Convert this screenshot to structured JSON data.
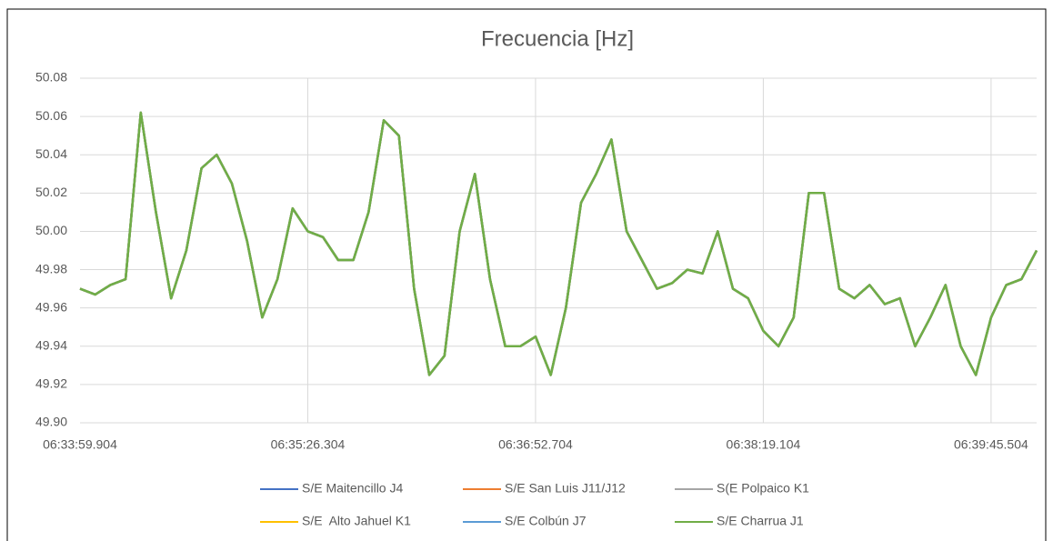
{
  "chart_data": {
    "type": "line",
    "title": "Frecuencia [Hz]",
    "categories": [
      "06:33:59.904",
      null,
      null,
      null,
      null,
      null,
      null,
      null,
      null,
      null,
      null,
      null,
      null,
      null,
      null,
      "06:35:26.304",
      null,
      null,
      null,
      null,
      null,
      null,
      null,
      null,
      null,
      null,
      null,
      null,
      null,
      null,
      "06:36:52.704",
      null,
      null,
      null,
      null,
      null,
      null,
      null,
      null,
      null,
      null,
      null,
      null,
      null,
      null,
      "06:38:19.104",
      null,
      null,
      null,
      null,
      null,
      null,
      null,
      null,
      null,
      null,
      null,
      null,
      null,
      null,
      "06:39:45.504",
      null,
      null,
      null
    ],
    "ylim": [
      49.9,
      50.08
    ],
    "yticks": [
      {
        "value": 49.9,
        "label": "49.90"
      },
      49.92,
      49.94,
      49.96,
      49.98,
      {
        "value": 50,
        "label": "50.00"
      },
      50.02,
      50.04,
      50.06,
      50.08
    ],
    "grid": true,
    "legend": "bottom",
    "series": [
      {
        "name": "S/E Maitencillo J4",
        "color": "#4472c4",
        "values": [
          49.97,
          49.967,
          49.972,
          49.975,
          50.062,
          50.01,
          49.965,
          49.99,
          50.033,
          50.04,
          50.025,
          49.995,
          49.955,
          49.975,
          50.012,
          50.0,
          49.997,
          49.985,
          49.985,
          50.01,
          50.058,
          50.05,
          49.97,
          49.925,
          49.935,
          50.0,
          50.03,
          49.975,
          49.94,
          49.94,
          49.945,
          49.925,
          49.96,
          50.015,
          50.03,
          50.048,
          50.0,
          49.985,
          49.97,
          49.973,
          49.98,
          49.978,
          50.0,
          49.97,
          49.965,
          49.948,
          49.94,
          49.955,
          50.02,
          50.02,
          49.97,
          49.965,
          49.972,
          49.962,
          49.965,
          49.94,
          49.955,
          49.972,
          49.94,
          49.925,
          49.955,
          49.972,
          49.975,
          49.99
        ]
      },
      {
        "name": "S/E San Luis J11/J12",
        "color": "#ed7d31",
        "values": [
          49.97,
          49.967,
          49.972,
          49.975,
          50.062,
          50.01,
          49.965,
          49.99,
          50.033,
          50.04,
          50.025,
          49.995,
          49.955,
          49.975,
          50.012,
          50.0,
          49.997,
          49.985,
          49.985,
          50.01,
          50.058,
          50.05,
          49.97,
          49.925,
          49.935,
          50.0,
          50.03,
          49.975,
          49.94,
          49.94,
          49.945,
          49.925,
          49.96,
          50.015,
          50.03,
          50.048,
          50.0,
          49.985,
          49.97,
          49.973,
          49.98,
          49.978,
          50.0,
          49.97,
          49.965,
          49.948,
          49.94,
          49.955,
          50.02,
          50.02,
          49.97,
          49.965,
          49.972,
          49.962,
          49.965,
          49.94,
          49.955,
          49.972,
          49.94,
          49.925,
          49.955,
          49.972,
          49.975,
          49.99
        ]
      },
      {
        "name": "S(E Polpaico K1",
        "color": "#a5a5a5",
        "values": [
          49.97,
          49.967,
          49.972,
          49.975,
          50.062,
          50.01,
          49.965,
          49.99,
          50.033,
          50.04,
          50.025,
          49.995,
          49.955,
          49.975,
          50.012,
          50.0,
          49.997,
          49.985,
          49.985,
          50.01,
          50.058,
          50.05,
          49.97,
          49.925,
          49.935,
          50.0,
          50.03,
          49.975,
          49.94,
          49.94,
          49.945,
          49.925,
          49.96,
          50.015,
          50.03,
          50.048,
          50.0,
          49.985,
          49.97,
          49.973,
          49.98,
          49.978,
          50.0,
          49.97,
          49.965,
          49.948,
          49.94,
          49.955,
          50.02,
          50.02,
          49.97,
          49.965,
          49.972,
          49.962,
          49.965,
          49.94,
          49.955,
          49.972,
          49.94,
          49.925,
          49.955,
          49.972,
          49.975,
          49.99
        ]
      },
      {
        "name": "S/E  Alto Jahuel K1",
        "color": "#ffc000",
        "values": [
          49.97,
          49.967,
          49.972,
          49.975,
          50.062,
          50.01,
          49.965,
          49.99,
          50.033,
          50.04,
          50.025,
          49.995,
          49.955,
          49.975,
          50.012,
          50.0,
          49.997,
          49.985,
          49.985,
          50.01,
          50.058,
          50.05,
          49.97,
          49.925,
          49.935,
          50.0,
          50.03,
          49.975,
          49.94,
          49.94,
          49.945,
          49.925,
          49.96,
          50.015,
          50.03,
          50.048,
          50.0,
          49.985,
          49.97,
          49.973,
          49.98,
          49.978,
          50.0,
          49.97,
          49.965,
          49.948,
          49.94,
          49.955,
          50.02,
          50.02,
          49.97,
          49.965,
          49.972,
          49.962,
          49.965,
          49.94,
          49.955,
          49.972,
          49.94,
          49.925,
          49.955,
          49.972,
          49.975,
          49.99
        ]
      },
      {
        "name": "S/E Colbún J7",
        "color": "#5b9bd5",
        "values": [
          49.97,
          49.967,
          49.972,
          49.975,
          50.062,
          50.01,
          49.965,
          49.99,
          50.033,
          50.04,
          50.025,
          49.995,
          49.955,
          49.975,
          50.012,
          50.0,
          49.997,
          49.985,
          49.985,
          50.01,
          50.058,
          50.05,
          49.97,
          49.925,
          49.935,
          50.0,
          50.03,
          49.975,
          49.94,
          49.94,
          49.945,
          49.925,
          49.96,
          50.015,
          50.03,
          50.048,
          50.0,
          49.985,
          49.97,
          49.973,
          49.98,
          49.978,
          50.0,
          49.97,
          49.965,
          49.948,
          49.94,
          49.955,
          50.02,
          50.02,
          49.97,
          49.965,
          49.972,
          49.962,
          49.965,
          49.94,
          49.955,
          49.972,
          49.94,
          49.925,
          49.955,
          49.972,
          49.975,
          49.99
        ]
      },
      {
        "name": "S/E Charrua J1",
        "color": "#70ad47",
        "values": [
          49.97,
          49.967,
          49.972,
          49.975,
          50.062,
          50.01,
          49.965,
          49.99,
          50.033,
          50.04,
          50.025,
          49.995,
          49.955,
          49.975,
          50.012,
          50.0,
          49.997,
          49.985,
          49.985,
          50.01,
          50.058,
          50.05,
          49.97,
          49.925,
          49.935,
          50.0,
          50.03,
          49.975,
          49.94,
          49.94,
          49.945,
          49.925,
          49.96,
          50.015,
          50.03,
          50.048,
          50.0,
          49.985,
          49.97,
          49.973,
          49.98,
          49.978,
          50.0,
          49.97,
          49.965,
          49.948,
          49.94,
          49.955,
          50.02,
          50.02,
          49.97,
          49.965,
          49.972,
          49.962,
          49.965,
          49.94,
          49.955,
          49.972,
          49.94,
          49.925,
          49.955,
          49.972,
          49.975,
          49.99
        ]
      }
    ]
  }
}
